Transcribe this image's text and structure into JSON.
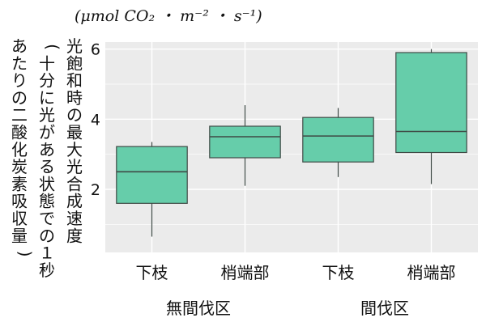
{
  "chart_data": {
    "type": "boxplot",
    "unit": "(μmol CO₂ ・ m⁻² ・ s⁻¹)",
    "ylabel_lines": [
      "光飽和時の最大光合成速度",
      "（十分に光がある状態での１秒",
      "あたりの二酸化炭素吸収量）"
    ],
    "yticks": [
      "2",
      "4",
      "6"
    ],
    "ylim": [
      0.2,
      6.2
    ],
    "categories": [
      "下枝",
      "梢端部",
      "下枝",
      "梢端部"
    ],
    "groups": [
      {
        "label": "無間伐区",
        "members": [
          0,
          1
        ]
      },
      {
        "label": "間伐区",
        "members": [
          2,
          3
        ]
      }
    ],
    "boxes": [
      {
        "min": 0.65,
        "q1": 1.6,
        "median": 2.5,
        "q3": 3.22,
        "max": 3.35
      },
      {
        "min": 2.1,
        "q1": 2.9,
        "median": 3.5,
        "q3": 3.8,
        "max": 4.4
      },
      {
        "min": 2.35,
        "q1": 2.78,
        "median": 3.52,
        "q3": 4.05,
        "max": 4.32
      },
      {
        "min": 2.15,
        "q1": 3.05,
        "median": 3.65,
        "q3": 5.9,
        "max": 6.0
      }
    ],
    "colors": {
      "box_fill": "#66cdaa",
      "box_stroke": "#3f4a45",
      "panel": "#ebebeb",
      "grid": "#ffffff"
    },
    "grid": true
  }
}
